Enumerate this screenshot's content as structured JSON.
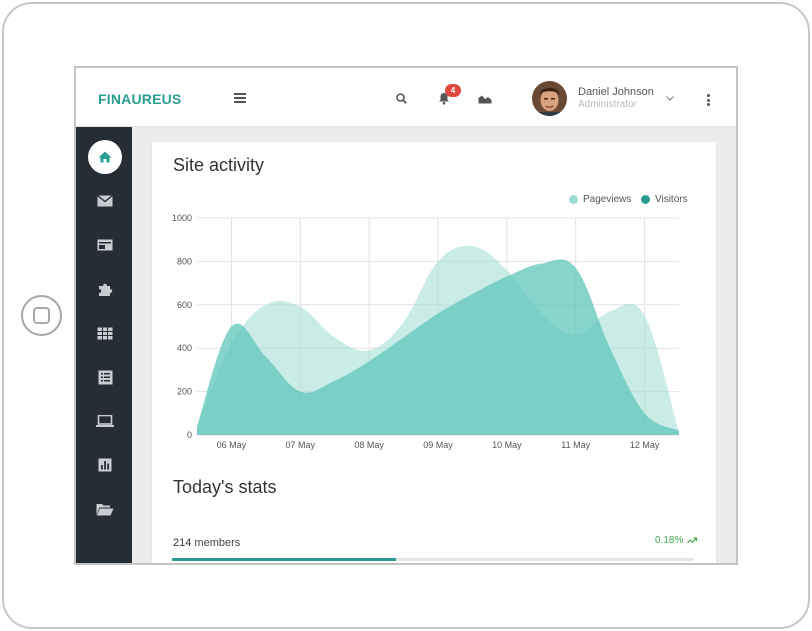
{
  "app": {
    "brand": "FINAUREUS",
    "notifications_count": "4",
    "user": {
      "name": "Daniel Johnson",
      "role": "Administrator"
    }
  },
  "sidebar": {
    "items": [
      {
        "icon": "home-icon",
        "active": true
      },
      {
        "icon": "mail-icon",
        "active": false
      },
      {
        "icon": "card-icon",
        "active": false
      },
      {
        "icon": "puzzle-icon",
        "active": false
      },
      {
        "icon": "table-icon",
        "active": false
      },
      {
        "icon": "list-icon",
        "active": false
      },
      {
        "icon": "laptop-icon",
        "active": false
      },
      {
        "icon": "bar-chart-icon",
        "active": false
      },
      {
        "icon": "folder-icon",
        "active": false
      }
    ]
  },
  "site_activity": {
    "title": "Site activity"
  },
  "chart_data": {
    "type": "area",
    "x": [
      "",
      "06 May",
      "",
      "07 May",
      "",
      "08 May",
      "",
      "09 May",
      "",
      "10 May",
      "",
      "11 May",
      "",
      "12 May",
      ""
    ],
    "x_tick_labels": [
      "06 May",
      "07 May",
      "08 May",
      "09 May",
      "10 May",
      "11 May",
      "12 May"
    ],
    "ylim": [
      0,
      1000
    ],
    "y_ticks": [
      "0",
      "200",
      "400",
      "600",
      "800",
      "1000"
    ],
    "grid": true,
    "legend_position": "top-right",
    "series": [
      {
        "name": "Pageviews",
        "color": "#9fdcd4",
        "values": [
          40,
          420,
          600,
          590,
          450,
          390,
          520,
          800,
          870,
          760,
          560,
          460,
          570,
          550,
          10
        ]
      },
      {
        "name": "Visitors",
        "color": "#5fc6bb",
        "values": [
          40,
          500,
          360,
          200,
          250,
          340,
          450,
          560,
          650,
          730,
          790,
          770,
          400,
          100,
          20
        ]
      }
    ]
  },
  "todays_stats": {
    "title": "Today's stats",
    "members_count": "214",
    "members_label": "members",
    "change": "0.18%",
    "progress": 0.43
  }
}
